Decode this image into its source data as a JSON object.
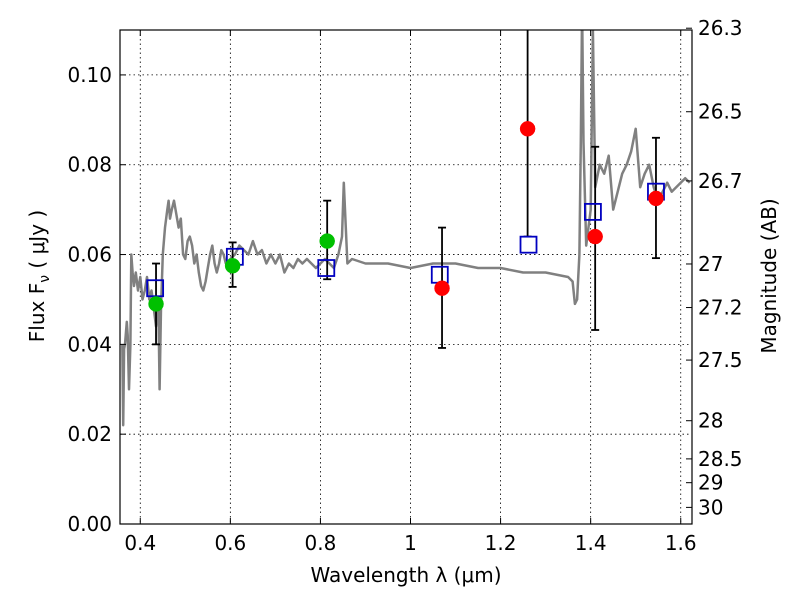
{
  "chart_data": {
    "type": "scatter",
    "title": "",
    "xlabel": "Wavelength  λ (μm)",
    "ylabel": "Flux  F",
    "ylabel_sub": "ν",
    "ylabel_units": " ( μJy )",
    "y2label": "Magnitude (AB)",
    "xlim": [
      0.355,
      1.625
    ],
    "ylim": [
      0.0,
      0.11
    ],
    "grid": true,
    "legend": "none",
    "x_ticks": [
      0.4,
      0.6,
      0.8,
      1.0,
      1.2,
      1.4,
      1.6
    ],
    "x_tick_labels": [
      "0.4",
      "0.6",
      "0.8",
      "1",
      "1.2",
      "1.4",
      "1.6"
    ],
    "y_ticks": [
      0.0,
      0.02,
      0.04,
      0.06,
      0.08,
      0.1
    ],
    "y_tick_labels": [
      "0.00",
      "0.02",
      "0.04",
      "0.06",
      "0.08",
      "0.10"
    ],
    "y2_ticks": [
      {
        "label": "26.3",
        "flux": 0.1104
      },
      {
        "label": "26.5",
        "flux": 0.0918
      },
      {
        "label": "26.7",
        "flux": 0.0764
      },
      {
        "label": "27",
        "flux": 0.0579
      },
      {
        "label": "27.2",
        "flux": 0.0482
      },
      {
        "label": "27.5",
        "flux": 0.0365
      },
      {
        "label": "28",
        "flux": 0.023
      },
      {
        "label": "28.5",
        "flux": 0.0145
      },
      {
        "label": "29",
        "flux": 0.0092
      },
      {
        "label": "30",
        "flux": 0.0037
      }
    ],
    "colors": {
      "model": "#808080",
      "green": "#00c000",
      "red": "#ff0000",
      "square": "#0000c0",
      "errorbar": "#000000"
    },
    "series": [
      {
        "kind": "line",
        "x": [
          0.36,
          0.362,
          0.364,
          0.366,
          0.37,
          0.372,
          0.375,
          0.378,
          0.38,
          0.383,
          0.386,
          0.39,
          0.395,
          0.4,
          0.405,
          0.41,
          0.415,
          0.42,
          0.425,
          0.43,
          0.435,
          0.44,
          0.443,
          0.446,
          0.45,
          0.455,
          0.46,
          0.463,
          0.466,
          0.47,
          0.475,
          0.48,
          0.485,
          0.49,
          0.495,
          0.5,
          0.505,
          0.51,
          0.515,
          0.52,
          0.525,
          0.53,
          0.535,
          0.54,
          0.545,
          0.55,
          0.555,
          0.56,
          0.565,
          0.57,
          0.575,
          0.58,
          0.585,
          0.59,
          0.6,
          0.61,
          0.62,
          0.63,
          0.64,
          0.65,
          0.66,
          0.67,
          0.68,
          0.69,
          0.7,
          0.71,
          0.72,
          0.73,
          0.74,
          0.75,
          0.76,
          0.77,
          0.78,
          0.79,
          0.8,
          0.81,
          0.82,
          0.83,
          0.84,
          0.848,
          0.852,
          0.86,
          0.87,
          0.9,
          0.95,
          1.0,
          1.05,
          1.1,
          1.15,
          1.2,
          1.25,
          1.3,
          1.35,
          1.36,
          1.365,
          1.37,
          1.375,
          1.378,
          1.381,
          1.384,
          1.39,
          1.4,
          1.405,
          1.41,
          1.42,
          1.43,
          1.44,
          1.45,
          1.46,
          1.47,
          1.48,
          1.49,
          1.5,
          1.51,
          1.52,
          1.53,
          1.54,
          1.55,
          1.56,
          1.57,
          1.58,
          1.59,
          1.6,
          1.61,
          1.62
        ],
        "y": [
          0.04,
          0.022,
          0.039,
          0.04,
          0.045,
          0.042,
          0.03,
          0.04,
          0.06,
          0.056,
          0.053,
          0.056,
          0.052,
          0.055,
          0.05,
          0.052,
          0.055,
          0.05,
          0.052,
          0.048,
          0.044,
          0.05,
          0.03,
          0.048,
          0.06,
          0.066,
          0.07,
          0.072,
          0.068,
          0.07,
          0.072,
          0.069,
          0.066,
          0.068,
          0.06,
          0.059,
          0.063,
          0.064,
          0.062,
          0.058,
          0.06,
          0.056,
          0.053,
          0.052,
          0.054,
          0.057,
          0.06,
          0.062,
          0.058,
          0.056,
          0.058,
          0.061,
          0.06,
          0.058,
          0.059,
          0.06,
          0.062,
          0.061,
          0.06,
          0.063,
          0.06,
          0.061,
          0.058,
          0.06,
          0.058,
          0.06,
          0.056,
          0.058,
          0.057,
          0.059,
          0.058,
          0.059,
          0.058,
          0.057,
          0.058,
          0.059,
          0.058,
          0.057,
          0.06,
          0.064,
          0.076,
          0.058,
          0.059,
          0.058,
          0.058,
          0.057,
          0.058,
          0.058,
          0.057,
          0.057,
          0.056,
          0.056,
          0.055,
          0.054,
          0.049,
          0.05,
          0.06,
          0.085,
          0.115,
          0.085,
          0.062,
          0.07,
          0.11,
          0.075,
          0.08,
          0.078,
          0.082,
          0.07,
          0.074,
          0.078,
          0.08,
          0.083,
          0.088,
          0.075,
          0.078,
          0.08,
          0.075,
          0.072,
          0.074,
          0.076,
          0.074,
          0.075,
          0.076,
          0.077,
          0.076
        ]
      },
      {
        "kind": "circles",
        "color": "green",
        "x": [
          0.435,
          0.605,
          0.815
        ],
        "y": [
          0.049,
          0.0575,
          0.063
        ]
      },
      {
        "kind": "circles",
        "color": "red",
        "x": [
          1.07,
          1.26,
          1.41,
          1.545
        ],
        "y": [
          0.0525,
          0.088,
          0.064,
          0.0725
        ]
      },
      {
        "kind": "squares",
        "color": "square",
        "x": [
          0.433,
          0.61,
          0.813,
          1.065,
          1.262,
          1.405,
          1.545
        ],
        "y": [
          0.0525,
          0.0595,
          0.057,
          0.0555,
          0.0622,
          0.0695,
          0.074
        ]
      },
      {
        "kind": "errorbars",
        "x": [
          0.435,
          0.605,
          0.815,
          1.07,
          1.26,
          1.41,
          1.545
        ],
        "low": [
          0.04,
          0.0528,
          0.0545,
          0.0392,
          0.064,
          0.0432,
          0.0592
        ],
        "high": [
          0.058,
          0.0627,
          0.072,
          0.066,
          0.115,
          0.084,
          0.086
        ]
      }
    ]
  }
}
